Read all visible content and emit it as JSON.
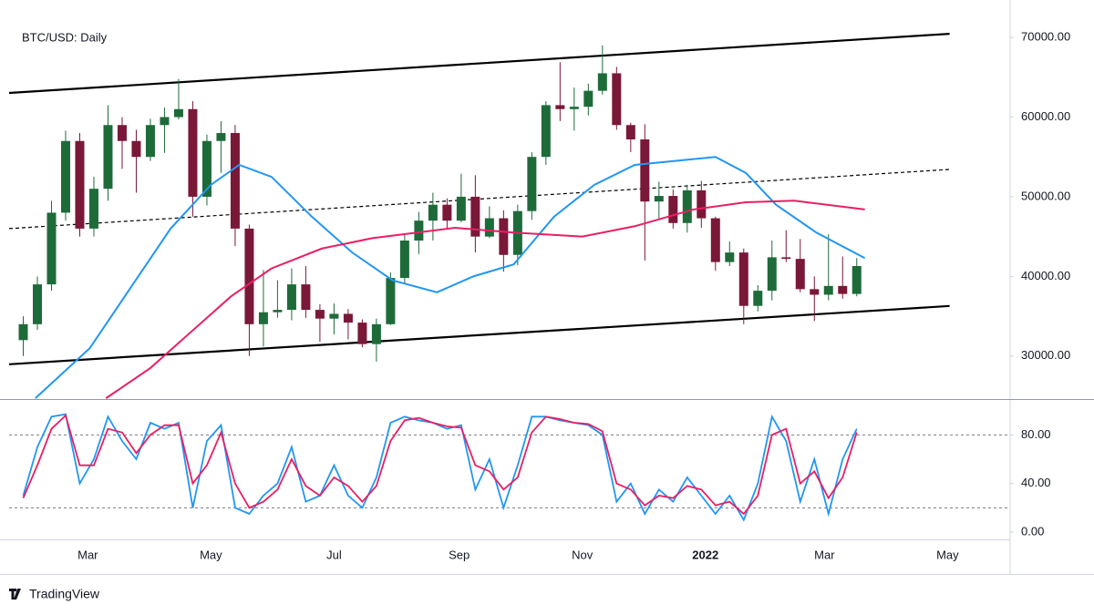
{
  "chart_data": [
    {
      "type": "candlestick",
      "title": "BTC/USD: Daily",
      "watermark": "TradingView",
      "up_color": "#1e6b3a",
      "down_color": "#7a1838",
      "xlim": [
        20,
        516
      ],
      "ylim": [
        24600,
        74700
      ],
      "xticks": [
        {
          "value": 59,
          "label": "Mar"
        },
        {
          "value": 120,
          "label": "May"
        },
        {
          "value": 181,
          "label": "Jul"
        },
        {
          "value": 243,
          "label": "Sep"
        },
        {
          "value": 304,
          "label": "Nov"
        },
        {
          "value": 365,
          "label": "2022"
        },
        {
          "value": 424,
          "label": "Mar"
        },
        {
          "value": 485,
          "label": "May"
        }
      ],
      "yticks": [
        {
          "value": 30000,
          "label": "30000.00"
        },
        {
          "value": 40000,
          "label": "40000.00"
        },
        {
          "value": 50000,
          "label": "50000.00"
        },
        {
          "value": 60000,
          "label": "60000.00"
        },
        {
          "value": 70000,
          "label": "70000.00"
        }
      ],
      "x": [
        27,
        34,
        41,
        48,
        55,
        62,
        69,
        76,
        83,
        90,
        97,
        104,
        111,
        118,
        125,
        132,
        139,
        146,
        153,
        160,
        167,
        174,
        181,
        188,
        195,
        202,
        209,
        216,
        223,
        230,
        237,
        244,
        251,
        258,
        265,
        272,
        279,
        286,
        293,
        300,
        307,
        314,
        321,
        328,
        335,
        342,
        349,
        356,
        363,
        370,
        377,
        384,
        391,
        398,
        405,
        412,
        419,
        426,
        433,
        440
      ],
      "open": [
        32000,
        34000,
        39000,
        48000,
        57000,
        46000,
        51000,
        59000,
        57000,
        55000,
        59000,
        60000,
        61000,
        50000,
        57000,
        58000,
        46000,
        34000,
        35500,
        35800,
        39000,
        35800,
        34700,
        35300,
        34200,
        31500,
        34000,
        39800,
        44500,
        47000,
        49000,
        47000,
        50000,
        45000,
        47300,
        42700,
        48200,
        55000,
        61500,
        61000,
        61300,
        63300,
        65500,
        59000,
        57200,
        49400,
        50100,
        46700,
        50800,
        47300,
        41800,
        43000,
        36300,
        38200,
        42400,
        42200,
        38400,
        37700,
        38800,
        37800
      ],
      "high": [
        35000,
        40000,
        49500,
        58300,
        58000,
        52500,
        61500,
        60000,
        58400,
        59800,
        61200,
        64800,
        62000,
        57800,
        59500,
        59000,
        46500,
        40800,
        39500,
        41000,
        41300,
        36500,
        36600,
        35900,
        34600,
        34700,
        40500,
        45300,
        48100,
        50500,
        49800,
        52900,
        52700,
        48800,
        48300,
        49000,
        55600,
        62000,
        66900,
        63700,
        64200,
        69000,
        66300,
        59300,
        59100,
        51900,
        50900,
        51500,
        52000,
        47500,
        44400,
        43500,
        38900,
        44500,
        45800,
        44700,
        40000,
        45300,
        42500,
        42300
      ],
      "low": [
        30000,
        33300,
        38200,
        47000,
        45000,
        45000,
        49500,
        53500,
        50500,
        54500,
        55500,
        59700,
        47500,
        48900,
        53000,
        43800,
        30000,
        31200,
        34800,
        34500,
        34800,
        31800,
        32700,
        32100,
        31100,
        29300,
        33900,
        39000,
        42800,
        44500,
        46000,
        46800,
        43000,
        44800,
        40600,
        41400,
        47100,
        54000,
        59500,
        58300,
        60200,
        62800,
        58400,
        55600,
        42000,
        47300,
        46000,
        45500,
        46100,
        40700,
        41300,
        34000,
        35600,
        37000,
        41800,
        38000,
        34400,
        37000,
        37200,
        37500
      ],
      "close": [
        34000,
        39000,
        48000,
        57000,
        46000,
        51000,
        59000,
        57000,
        55000,
        59000,
        60000,
        61000,
        50000,
        57000,
        58000,
        46000,
        34000,
        35500,
        35800,
        39000,
        35800,
        34700,
        35300,
        34200,
        31500,
        34000,
        39800,
        44500,
        47000,
        49000,
        47000,
        50000,
        45000,
        47300,
        42700,
        48200,
        55000,
        61500,
        61000,
        61300,
        63300,
        65500,
        59000,
        57200,
        49400,
        50100,
        46700,
        50800,
        47300,
        41800,
        43000,
        36300,
        38200,
        42400,
        42200,
        38400,
        37700,
        38800,
        37800,
        41300
      ],
      "overlays": [
        {
          "color": "#2196f3",
          "x": [
            33,
            60,
            80,
            100,
            120,
            134,
            150,
            170,
            190,
            210,
            232,
            250,
            270,
            290,
            310,
            330,
            350,
            370,
            385,
            400,
            420,
            444
          ],
          "values": [
            24700,
            31000,
            38500,
            46000,
            51500,
            54000,
            52500,
            47500,
            43000,
            39500,
            38000,
            40000,
            41500,
            47500,
            51500,
            54000,
            54500,
            55000,
            53000,
            49000,
            45500,
            42300
          ]
        },
        {
          "color": "#e91e63",
          "x": [
            68,
            90,
            110,
            130,
            150,
            175,
            200,
            241,
            270,
            304,
            330,
            359,
            385,
            409,
            444
          ],
          "values": [
            24700,
            28500,
            33000,
            37500,
            41000,
            43500,
            44800,
            46100,
            45500,
            45000,
            46300,
            48400,
            49300,
            49500,
            48400
          ]
        }
      ],
      "lines": [
        {
          "style": "solid",
          "color": "#000000",
          "x": [
            20,
            486
          ],
          "values": [
            63029,
            70457
          ]
        },
        {
          "style": "dashed",
          "color": "#000000",
          "x": [
            20,
            486
          ],
          "values": [
            46000,
            53429
          ]
        },
        {
          "style": "solid",
          "color": "#000000",
          "x": [
            20,
            486
          ],
          "values": [
            28971,
            36286
          ]
        }
      ]
    },
    {
      "type": "line",
      "ylim": [
        -6,
        108
      ],
      "yticks": [
        {
          "value": 80,
          "label": "80.00"
        },
        {
          "value": 40,
          "label": "40.00"
        },
        {
          "value": 0,
          "label": "0.00"
        }
      ],
      "bands": [
        80,
        20
      ],
      "series": [
        {
          "color": "#2196f3",
          "values": [
            30,
            70,
            95,
            97,
            40,
            60,
            95,
            75,
            60,
            90,
            85,
            90,
            20,
            75,
            88,
            20,
            15,
            30,
            40,
            70,
            25,
            30,
            55,
            30,
            20,
            45,
            90,
            95,
            92,
            90,
            85,
            88,
            35,
            60,
            20,
            55,
            95,
            95,
            92,
            90,
            88,
            80,
            25,
            40,
            15,
            35,
            25,
            45,
            30,
            15,
            30,
            10,
            40,
            95,
            75,
            25,
            60,
            15,
            60,
            85
          ]
        },
        {
          "color": "#e91e63",
          "values": [
            28,
            55,
            85,
            96,
            55,
            55,
            85,
            82,
            65,
            80,
            88,
            88,
            40,
            55,
            82,
            40,
            20,
            25,
            35,
            60,
            38,
            30,
            45,
            38,
            25,
            38,
            75,
            92,
            94,
            90,
            87,
            86,
            55,
            50,
            35,
            45,
            82,
            95,
            93,
            90,
            89,
            83,
            40,
            35,
            22,
            30,
            28,
            38,
            35,
            22,
            25,
            15,
            30,
            80,
            85,
            40,
            50,
            28,
            45,
            82
          ]
        }
      ]
    }
  ]
}
